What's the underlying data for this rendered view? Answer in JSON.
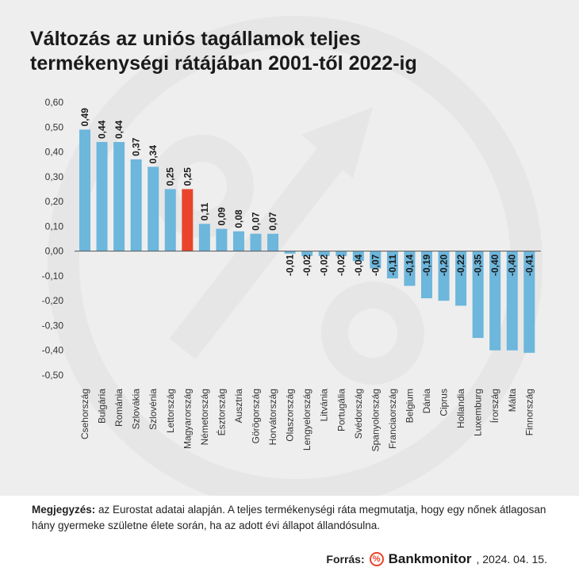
{
  "title_line1": "Változás az uniós tagállamok teljes",
  "title_line2": "termékenységi  rátájában 2001-től 2022-ig",
  "note_label": "Megjegyzés:",
  "note_text": " az Eurostat adatai alapján. A teljes termékenységi ráta megmutatja, hogy egy nőnek átlagosan hány gyermeke születne élete során, ha az adott évi állapot állandósulna.",
  "source_label": "Forrás:",
  "brand_name": "Bankmonitor",
  "date_text": ", 2024. 04. 15.",
  "logo_icon": "percent-logo-icon",
  "colors": {
    "bar": "#6db6dc",
    "highlight": "#e8452c",
    "panel": "#eeeeee"
  },
  "chart_data": {
    "type": "bar",
    "title": "Változás az uniós tagállamok teljes termékenységi  rátájában 2001-től 2022-ig",
    "xlabel": "",
    "ylabel": "",
    "ylim": [
      -0.5,
      0.6
    ],
    "yticks": [
      "0,60",
      "0,50",
      "0,40",
      "0,30",
      "0,20",
      "0,10",
      "0,00",
      "-0,10",
      "-0,20",
      "-0,30",
      "-0,40",
      "-0,50"
    ],
    "ytick_values": [
      0.6,
      0.5,
      0.4,
      0.3,
      0.2,
      0.1,
      0,
      -0.1,
      -0.2,
      -0.3,
      -0.4,
      -0.5
    ],
    "grid": false,
    "highlight_category": "Magyarország",
    "categories": [
      "Csehország",
      "Bulgária",
      "Románia",
      "Szlovákia",
      "Szlovénia",
      "Lettország",
      "Magyarország",
      "Németország",
      "Észtország",
      "Ausztria",
      "Görögország",
      "Horvátország",
      "Olaszország",
      "Lengyelország",
      "Litvánia",
      "Portugália",
      "Svédország",
      "Spanyolország",
      "Franciaország",
      "Belgium",
      "Dánia",
      "Ciprus",
      "Hollandia",
      "Luxemburg",
      "Írország",
      "Málta",
      "Finnország"
    ],
    "values": [
      0.49,
      0.44,
      0.44,
      0.37,
      0.34,
      0.25,
      0.25,
      0.11,
      0.09,
      0.08,
      0.07,
      0.07,
      -0.01,
      -0.02,
      -0.02,
      -0.02,
      -0.04,
      -0.07,
      -0.11,
      -0.14,
      -0.19,
      -0.2,
      -0.22,
      -0.35,
      -0.4,
      -0.4,
      -0.41
    ],
    "value_labels": [
      "0,49",
      "0,44",
      "0,44",
      "0,37",
      "0,34",
      "0,25",
      "0,25",
      "0,11",
      "0,09",
      "0,08",
      "0,07",
      "0,07",
      "-0,01",
      "-0,02",
      "-0,02",
      "-0,02",
      "-0,04",
      "-0,07",
      "-0,11",
      "-0,14",
      "-0,19",
      "-0,20",
      "-0,22",
      "-0,35",
      "-0,40",
      "-0,40",
      "-0,41"
    ]
  }
}
